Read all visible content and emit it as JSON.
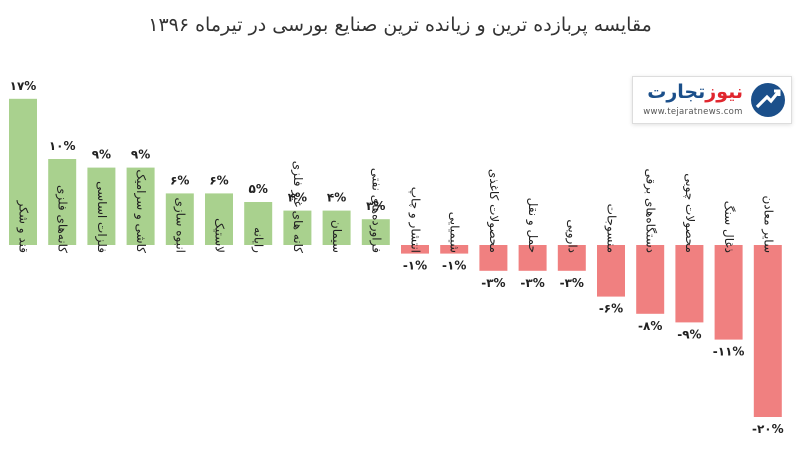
{
  "header": {
    "title": "مقایسه پربازده ترین و زیانده ترین صنایع بورسی در  تیرماه ۱۳۹۶"
  },
  "logo": {
    "name_part1": "تجارت",
    "name_part2": "نیوز",
    "url": "www.tejaratnews.com"
  },
  "colors": {
    "positive": "#a9d18e",
    "negative": "#f08080"
  },
  "chart_data": {
    "type": "bar",
    "title": "مقایسه پربازده ترین و زیانده ترین صنایع بورسی در  تیرماه ۱۳۹۶",
    "categories": [
      "قند و شکر",
      "کانه‌های فلزی",
      "فلزات اساسی",
      "کاشی و سرامیک",
      "انبوه سازی",
      "لاستیک",
      "رایانه",
      "کانه های غیر فلزی",
      "سیمان",
      "فراورده‌های نفتی",
      "انتشار و چاپ",
      "شیمیایی",
      "محصولات کاغذی",
      "حمل و نقل",
      "دارویی",
      "منسوجات",
      "دستگاه‌های برقی",
      "محصولات چوبی",
      "ذغال سنگ",
      "سایر معادن"
    ],
    "values": [
      17,
      10,
      9,
      9,
      6,
      6,
      5,
      4,
      4,
      3,
      -1,
      -1,
      -3,
      -3,
      -3,
      -6,
      -8,
      -9,
      -11,
      -20
    ],
    "value_labels": [
      "۱۷%",
      "۱۰%",
      "۹%",
      "۹%",
      "۶%",
      "۶%",
      "۵%",
      "۴%",
      "۴%",
      "۳%",
      "-۱%",
      "-۱%",
      "-۳%",
      "-۳%",
      "-۳%",
      "-۶%",
      "-۸%",
      "-۹%",
      "-۱۱%",
      "-۲۰%"
    ],
    "xlabel": "",
    "ylabel": "",
    "ylim": [
      -20,
      17
    ],
    "grid": false,
    "legend": "none"
  }
}
